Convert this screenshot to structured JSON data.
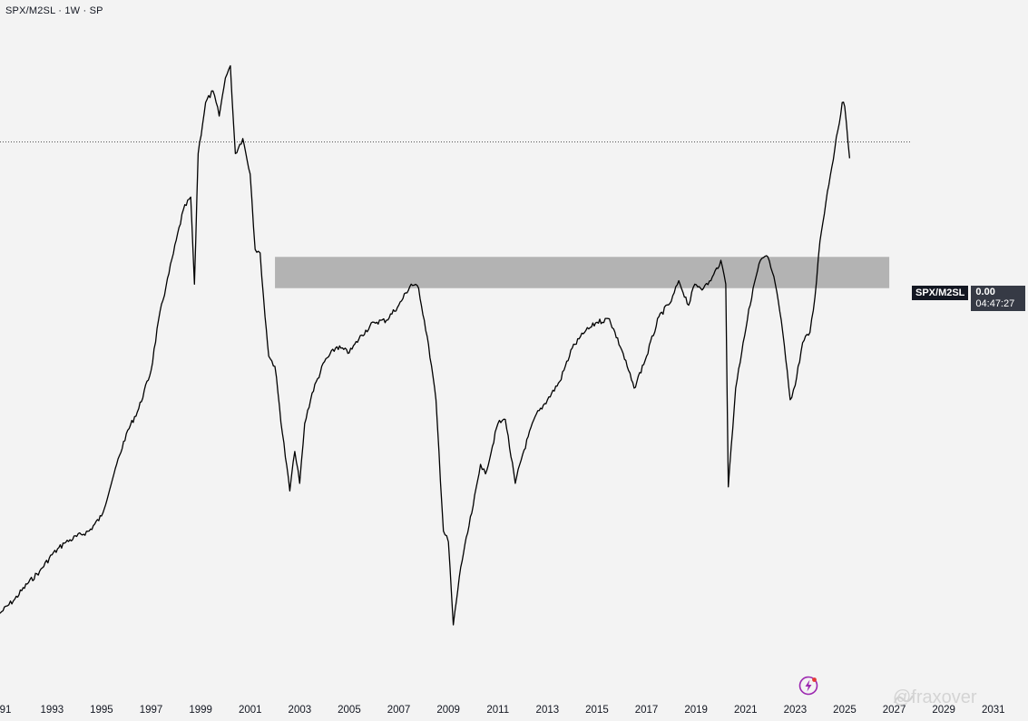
{
  "header": {
    "title": "SPX/M2SL · 1W · SP"
  },
  "price_tag": {
    "symbol": "SPX/M2SL",
    "value": "0.00",
    "countdown": "04:47:27"
  },
  "colors": {
    "background": "#f3f3f3",
    "line": "#000000",
    "zone": "#b3b3b3",
    "label_bg": "#131722",
    "value_bg": "#363a45",
    "bolt": "#9c27b0"
  },
  "icons": {
    "bolt": "lightning-bolt-icon"
  },
  "watermark": "@fraxover",
  "chart_data": {
    "type": "line",
    "title": "SPX/M2SL · 1W · SP",
    "xlabel": "",
    "ylabel": "",
    "x_tick_labels": [
      "91",
      "1993",
      "1995",
      "1997",
      "1999",
      "2001",
      "2003",
      "2005",
      "2007",
      "2009",
      "2011",
      "2013",
      "2015",
      "2017",
      "2019",
      "2021",
      "2023",
      "2025",
      "2027",
      "2029",
      "2031"
    ],
    "xlim": [
      1990.9,
      2032.4
    ],
    "ylim": [
      0,
      100
    ],
    "grid": false,
    "y_axis_visible": false,
    "series": [
      {
        "x": [
          1990.9,
          1991.5,
          1992.0,
          1992.5,
          1993.0,
          1993.5,
          1994.0,
          1994.5,
          1995.0,
          1995.5,
          1996.0,
          1996.5,
          1997.0,
          1997.3,
          1997.6,
          1997.9,
          1998.3,
          1998.6,
          1998.75,
          1998.9,
          1999.2,
          1999.5,
          1999.75,
          2000.0,
          2000.2,
          2000.4,
          2000.7,
          2001.0,
          2001.2,
          2001.4,
          2001.6,
          2001.75,
          2002.0,
          2002.3,
          2002.6,
          2002.8,
          2003.0,
          2003.2,
          2003.5,
          2004.0,
          2004.5,
          2005.0,
          2005.5,
          2006.0,
          2006.5,
          2007.0,
          2007.5,
          2007.8,
          2008.2,
          2008.5,
          2008.8,
          2009.0,
          2009.2,
          2009.5,
          2010.0,
          2010.3,
          2010.5,
          2011.0,
          2011.3,
          2011.7,
          2012.0,
          2012.5,
          2013.0,
          2013.5,
          2014.0,
          2014.5,
          2015.0,
          2015.5,
          2016.0,
          2016.5,
          2017.0,
          2017.5,
          2018.0,
          2018.3,
          2018.7,
          2018.95,
          2019.3,
          2019.6,
          2020.0,
          2020.2,
          2020.3,
          2020.6,
          2020.9,
          2021.3,
          2021.6,
          2021.9,
          2022.2,
          2022.5,
          2022.8,
          2023.0,
          2023.3,
          2023.6,
          2023.8,
          2024.0,
          2024.3,
          2024.6,
          2024.9,
          2025.0,
          2025.2
        ],
        "y": [
          12.5,
          14.6,
          16.8,
          18.7,
          21.1,
          22.8,
          23.8,
          24.6,
          26.8,
          33.0,
          38.9,
          42.6,
          48.2,
          55.6,
          60.5,
          65.4,
          71.8,
          73.7,
          60.9,
          80.1,
          87.6,
          89.3,
          85.6,
          91.2,
          93.0,
          80.1,
          82.3,
          77.1,
          66.0,
          65.5,
          56.1,
          50.3,
          48.8,
          39.0,
          30.5,
          36.3,
          31.6,
          40.4,
          44.9,
          49.5,
          51.7,
          50.8,
          53.4,
          55.3,
          55.6,
          57.8,
          60.9,
          60.3,
          52.0,
          43.9,
          24.6,
          23.0,
          10.8,
          19.3,
          28.3,
          34.4,
          33.0,
          40.4,
          41.0,
          31.6,
          35.9,
          41.4,
          43.9,
          46.6,
          51.5,
          53.8,
          55.3,
          55.8,
          51.2,
          45.6,
          50.3,
          56.1,
          58.4,
          61.4,
          57.8,
          60.9,
          60.3,
          61.4,
          64.4,
          60.9,
          31.1,
          45.6,
          52.3,
          60.3,
          64.4,
          64.9,
          60.9,
          53.8,
          43.9,
          46.0,
          52.3,
          53.8,
          59.0,
          67.2,
          74.5,
          80.8,
          87.6,
          87.0,
          79.4
        ]
      }
    ],
    "annotations": {
      "horizontal_band": {
        "x_start": 2002.0,
        "x_end": 2026.8,
        "y_low": 60.3,
        "y_high": 64.9
      },
      "last_price_line": {
        "y": 81.8,
        "style": "dotted"
      }
    }
  }
}
